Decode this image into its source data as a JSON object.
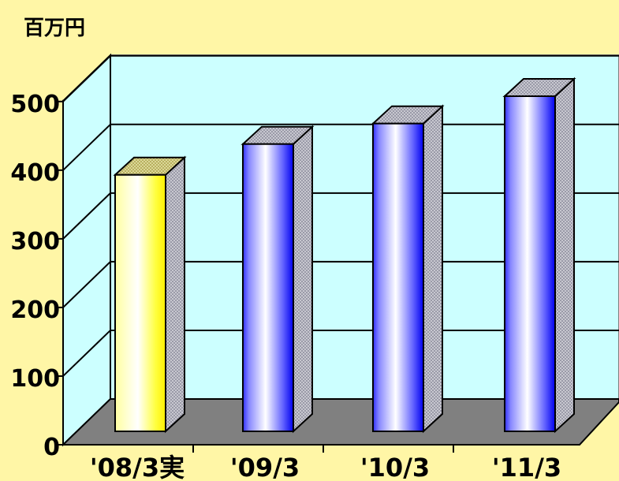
{
  "chart_data": {
    "type": "bar",
    "unit_label": "百万円",
    "categories": [
      "'08/3実",
      "'09/3",
      "'10/3",
      "'11/3"
    ],
    "values": [
      375,
      420,
      450,
      490
    ],
    "ylim": [
      0,
      500
    ],
    "yticks": [
      "0",
      "100",
      "200",
      "300",
      "400",
      "500"
    ],
    "grid": true,
    "colors": {
      "background": "#FFF6A6",
      "back_wall": "#CCFFFF",
      "floor": "#808080",
      "actual_bar": "#FFFF00",
      "plan_bar": "#2B2BFF"
    }
  }
}
